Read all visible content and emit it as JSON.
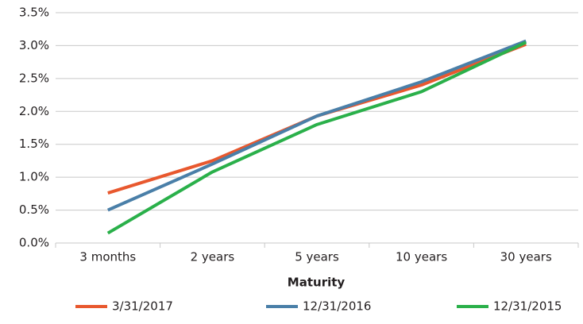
{
  "chart_data": {
    "type": "line",
    "x_label": "Maturity",
    "categories": [
      "3 months",
      "2 years",
      "5 years",
      "10 years",
      "30 years"
    ],
    "series": [
      {
        "name": "3/31/2017",
        "color": "#e8582e",
        "values": [
          0.76,
          1.25,
          1.93,
          2.4,
          3.02
        ]
      },
      {
        "name": "12/31/2016",
        "color": "#4a7fa8",
        "values": [
          0.5,
          1.2,
          1.93,
          2.45,
          3.07
        ]
      },
      {
        "name": "12/31/2015",
        "color": "#2ab04a",
        "values": [
          0.15,
          1.08,
          1.8,
          2.3,
          3.05
        ]
      }
    ],
    "ylim": [
      0,
      3.5
    ],
    "yticks": [
      {
        "value": 0,
        "label": "0.0%"
      },
      {
        "value": 0.5,
        "label": "0.5%"
      },
      {
        "value": 1,
        "label": "1.0%"
      },
      {
        "value": 1.5,
        "label": "1.5%"
      },
      {
        "value": 2,
        "label": "2.0%"
      },
      {
        "value": 2.5,
        "label": "2.5%"
      },
      {
        "value": 3,
        "label": "3.0%"
      },
      {
        "value": 3.5,
        "label": "3.5%"
      }
    ],
    "grid": true,
    "legend": "bottom"
  }
}
